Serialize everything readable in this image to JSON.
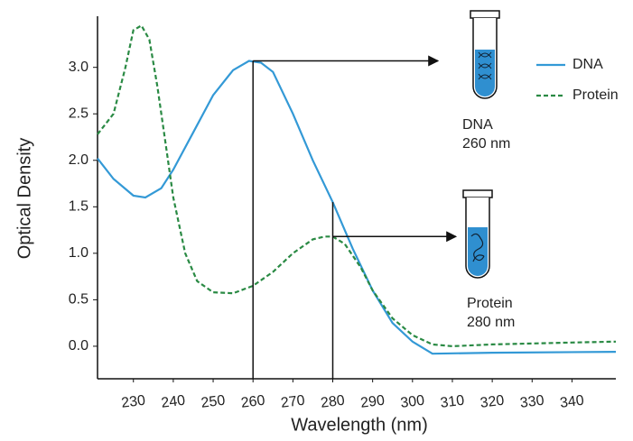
{
  "chart_data": {
    "type": "line",
    "x_label": "Wavelength (nm)",
    "y_label": "Optical Density",
    "xlim": [
      221,
      351
    ],
    "ylim": [
      -0.35,
      3.55
    ],
    "xticks": [
      230,
      240,
      250,
      260,
      270,
      280,
      290,
      300,
      310,
      320,
      330,
      340
    ],
    "yticks": [
      {
        "value": 0,
        "label": "0.0"
      },
      0.5,
      {
        "value": 1,
        "label": "1.0"
      },
      1.5,
      {
        "value": 2,
        "label": "2.0"
      },
      2.5,
      {
        "value": 3,
        "label": "3.0"
      }
    ],
    "legend": "top-right",
    "series": [
      {
        "name": "DNA",
        "color": "#3399d6",
        "dash": "solid",
        "x": [
          221,
          225,
          230,
          233,
          237,
          240,
          245,
          250,
          255,
          259,
          262,
          265,
          270,
          275,
          280,
          285,
          290,
          295,
          300,
          305,
          320,
          351
        ],
        "values": [
          2.02,
          1.8,
          1.62,
          1.6,
          1.7,
          1.9,
          2.3,
          2.7,
          2.97,
          3.07,
          3.05,
          2.95,
          2.5,
          2.0,
          1.55,
          1.05,
          0.6,
          0.25,
          0.05,
          -0.08,
          -0.07,
          -0.06
        ]
      },
      {
        "name": "Protein",
        "color": "#2a8a44",
        "dash": "dashed",
        "x": [
          221,
          225,
          228,
          230,
          232,
          234,
          236,
          238,
          240,
          243,
          246,
          250,
          255,
          260,
          265,
          270,
          275,
          278,
          280,
          283,
          287,
          290,
          295,
          300,
          305,
          310,
          320,
          340,
          351
        ],
        "values": [
          2.28,
          2.5,
          3.0,
          3.4,
          3.45,
          3.3,
          2.8,
          2.2,
          1.6,
          1.0,
          0.7,
          0.58,
          0.57,
          0.65,
          0.8,
          1.0,
          1.15,
          1.18,
          1.18,
          1.1,
          0.85,
          0.6,
          0.3,
          0.12,
          0.02,
          0.0,
          0.02,
          0.04,
          0.05
        ]
      }
    ],
    "markers": [
      {
        "x": 260,
        "y": 3.07,
        "label": [
          "DNA",
          "260 nm"
        ]
      },
      {
        "x": 280,
        "y": 1.18,
        "y_top": 1.55,
        "label": [
          "Protein",
          "280 nm"
        ]
      }
    ]
  }
}
